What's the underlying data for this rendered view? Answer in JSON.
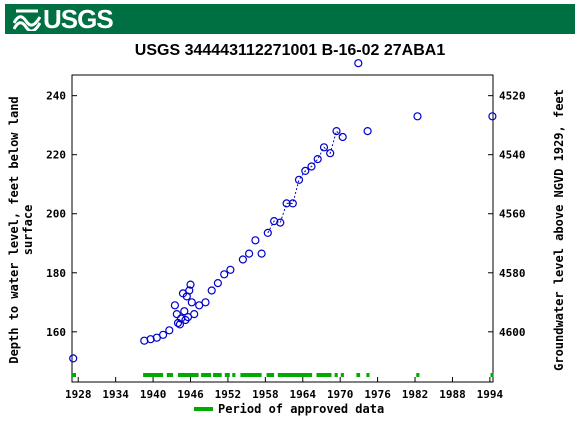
{
  "header": {
    "logo_text": "USGS",
    "logo_icon": "usgs-wave-icon"
  },
  "chart_data": {
    "type": "scatter",
    "title": "USGS 344443112271001 B-16-02 27ABA1",
    "ylabel_left": [
      "Depth to water level, feet below land",
      "surface"
    ],
    "ylabel_right": "Groundwater level above NGVD 1929, feet",
    "xlim": [
      1927,
      1994.5
    ],
    "ylim_left": [
      247,
      143
    ],
    "x_ticks": [
      1928,
      1934,
      1940,
      1946,
      1952,
      1958,
      1964,
      1970,
      1976,
      1982,
      1988,
      1994
    ],
    "y_ticks_left": [
      160,
      180,
      200,
      220,
      240
    ],
    "y_ticks_right": [
      4600,
      4580,
      4560,
      4540,
      4520
    ],
    "right_axis_offset": 4760,
    "series": [
      {
        "style": "circle-marker",
        "color": "#0000cc",
        "points": [
          [
            1927.2,
            151
          ],
          [
            1938.6,
            157
          ],
          [
            1939.6,
            157.5
          ],
          [
            1940.6,
            158
          ],
          [
            1941.6,
            159
          ],
          [
            1942.6,
            160.5
          ],
          [
            1943.5,
            169
          ],
          [
            1943.8,
            166
          ],
          [
            1944.0,
            163
          ],
          [
            1944.3,
            162.5
          ],
          [
            1944.5,
            164.5
          ],
          [
            1944.8,
            173
          ],
          [
            1945.0,
            167
          ],
          [
            1945.2,
            164
          ],
          [
            1945.4,
            172
          ],
          [
            1945.6,
            165
          ],
          [
            1945.8,
            174
          ],
          [
            1946.0,
            176
          ],
          [
            1946.2,
            170
          ],
          [
            1946.6,
            166
          ],
          [
            1947.4,
            169
          ],
          [
            1948.4,
            170
          ],
          [
            1949.4,
            174
          ],
          [
            1950.4,
            176.5
          ],
          [
            1951.4,
            179.5
          ],
          [
            1952.4,
            181
          ],
          [
            1954.4,
            184.5
          ],
          [
            1955.4,
            186.5
          ],
          [
            1956.4,
            191
          ],
          [
            1957.4,
            186.5
          ],
          [
            1958.4,
            193.5
          ],
          [
            1959.4,
            197.5
          ],
          [
            1960.4,
            197
          ],
          [
            1961.4,
            203.5
          ],
          [
            1962.4,
            203.5
          ],
          [
            1963.4,
            211.5
          ],
          [
            1964.4,
            214.5
          ],
          [
            1965.4,
            216
          ],
          [
            1966.4,
            218.5
          ],
          [
            1967.4,
            222.5
          ],
          [
            1968.4,
            220.5
          ],
          [
            1969.4,
            228
          ],
          [
            1970.4,
            226
          ],
          [
            1972.9,
            251
          ],
          [
            1974.4,
            228
          ],
          [
            1982.4,
            233
          ],
          [
            1994.4,
            233
          ]
        ],
        "dashed_segment": [
          [
            1958.4,
            193.5
          ],
          [
            1959.4,
            197.5
          ],
          [
            1960.4,
            197
          ],
          [
            1961.4,
            203.5
          ],
          [
            1962.4,
            203.5
          ],
          [
            1963.4,
            211.5
          ],
          [
            1964.4,
            214.5
          ],
          [
            1965.4,
            216
          ],
          [
            1966.4,
            218.5
          ],
          [
            1967.4,
            222.5
          ],
          [
            1968.4,
            220.5
          ],
          [
            1969.4,
            228
          ],
          [
            1970.4,
            226
          ]
        ]
      }
    ],
    "approved_periods": [
      [
        1938.4,
        1941.6
      ],
      [
        1942.2,
        1943.2
      ],
      [
        1944.0,
        1947.3
      ],
      [
        1947.7,
        1949.3
      ],
      [
        1949.6,
        1951.0
      ],
      [
        1951.5,
        1952.3
      ],
      [
        1952.7,
        1953.2
      ],
      [
        1954.0,
        1957.4
      ],
      [
        1958.2,
        1959.4
      ],
      [
        1960.0,
        1965.5
      ],
      [
        1966.2,
        1968.6
      ],
      [
        1969.1,
        1969.6
      ],
      [
        1970.1,
        1970.6
      ],
      [
        1972.6,
        1973.2
      ],
      [
        1974.2,
        1974.7
      ],
      [
        1982.2,
        1982.7
      ],
      [
        1994.1,
        1994.6
      ]
    ],
    "approved_color": "#00aa00",
    "legend": {
      "label": "Period of approved data",
      "position": "bottom-center"
    }
  }
}
